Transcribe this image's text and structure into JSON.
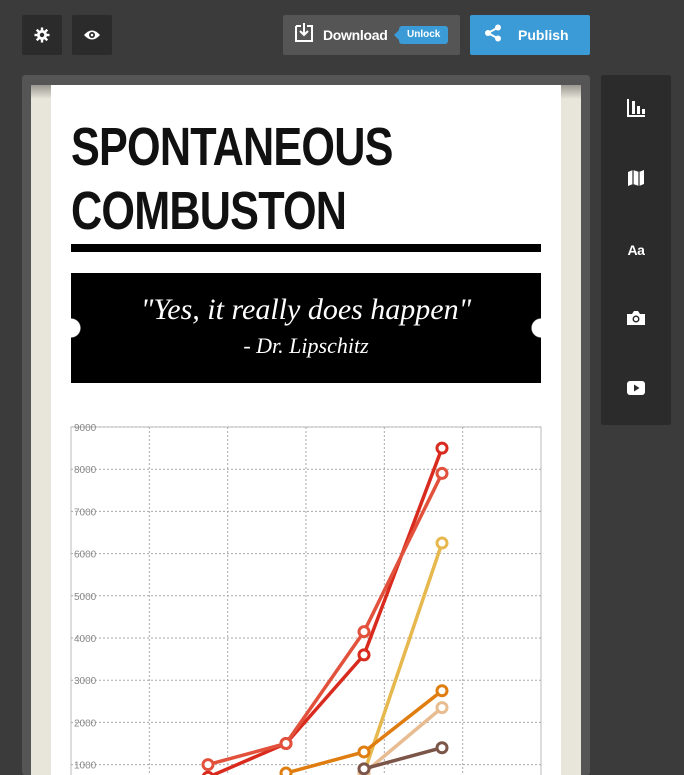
{
  "toolbar": {
    "settings_icon": "gear-icon",
    "preview_icon": "eye-icon",
    "download_label": "Download",
    "unlock_label": "Unlock",
    "publish_label": "Publish"
  },
  "sidebar": {
    "items": [
      {
        "name": "charts",
        "icon": "bar-chart-icon"
      },
      {
        "name": "maps",
        "icon": "map-icon"
      },
      {
        "name": "text",
        "icon": "text-icon",
        "label": "Aa"
      },
      {
        "name": "photos",
        "icon": "camera-icon"
      },
      {
        "name": "video",
        "icon": "video-icon"
      }
    ]
  },
  "infographic": {
    "title_line1": "SPONTANEOUS",
    "title_line2": "COMBUSTON",
    "quote": "\"Yes, it really does happen\"",
    "quote_author": "- Dr. Lipschitz"
  },
  "colors": {
    "accent": "#3a9bd6",
    "toolbar_dark": "#2b2b2b",
    "background": "#3b3b3b"
  },
  "chart_data": {
    "type": "line",
    "ylim": [
      0,
      9000
    ],
    "yticks": [
      "9000",
      "8000",
      "7000",
      "6000",
      "5000",
      "4000",
      "3000",
      "2000",
      "1000"
    ],
    "x": [
      0,
      1,
      2,
      3,
      4,
      5
    ],
    "grid": true,
    "series": [
      {
        "color": "#d92a1e",
        "values": [
          null,
          null,
          700,
          1500,
          3600,
          8500
        ]
      },
      {
        "color": "#e2513b",
        "values": [
          null,
          null,
          1000,
          1500,
          4150,
          7900
        ]
      },
      {
        "color": "#e6b84e",
        "values": [
          null,
          null,
          null,
          null,
          800,
          6250
        ]
      },
      {
        "color": "#e07d10",
        "values": [
          null,
          null,
          null,
          800,
          1300,
          2750
        ]
      },
      {
        "color": "#e8bc91",
        "values": [
          null,
          null,
          null,
          null,
          800,
          2350
        ]
      },
      {
        "color": "#7b5548",
        "values": [
          null,
          null,
          null,
          null,
          900,
          1400
        ]
      }
    ]
  }
}
